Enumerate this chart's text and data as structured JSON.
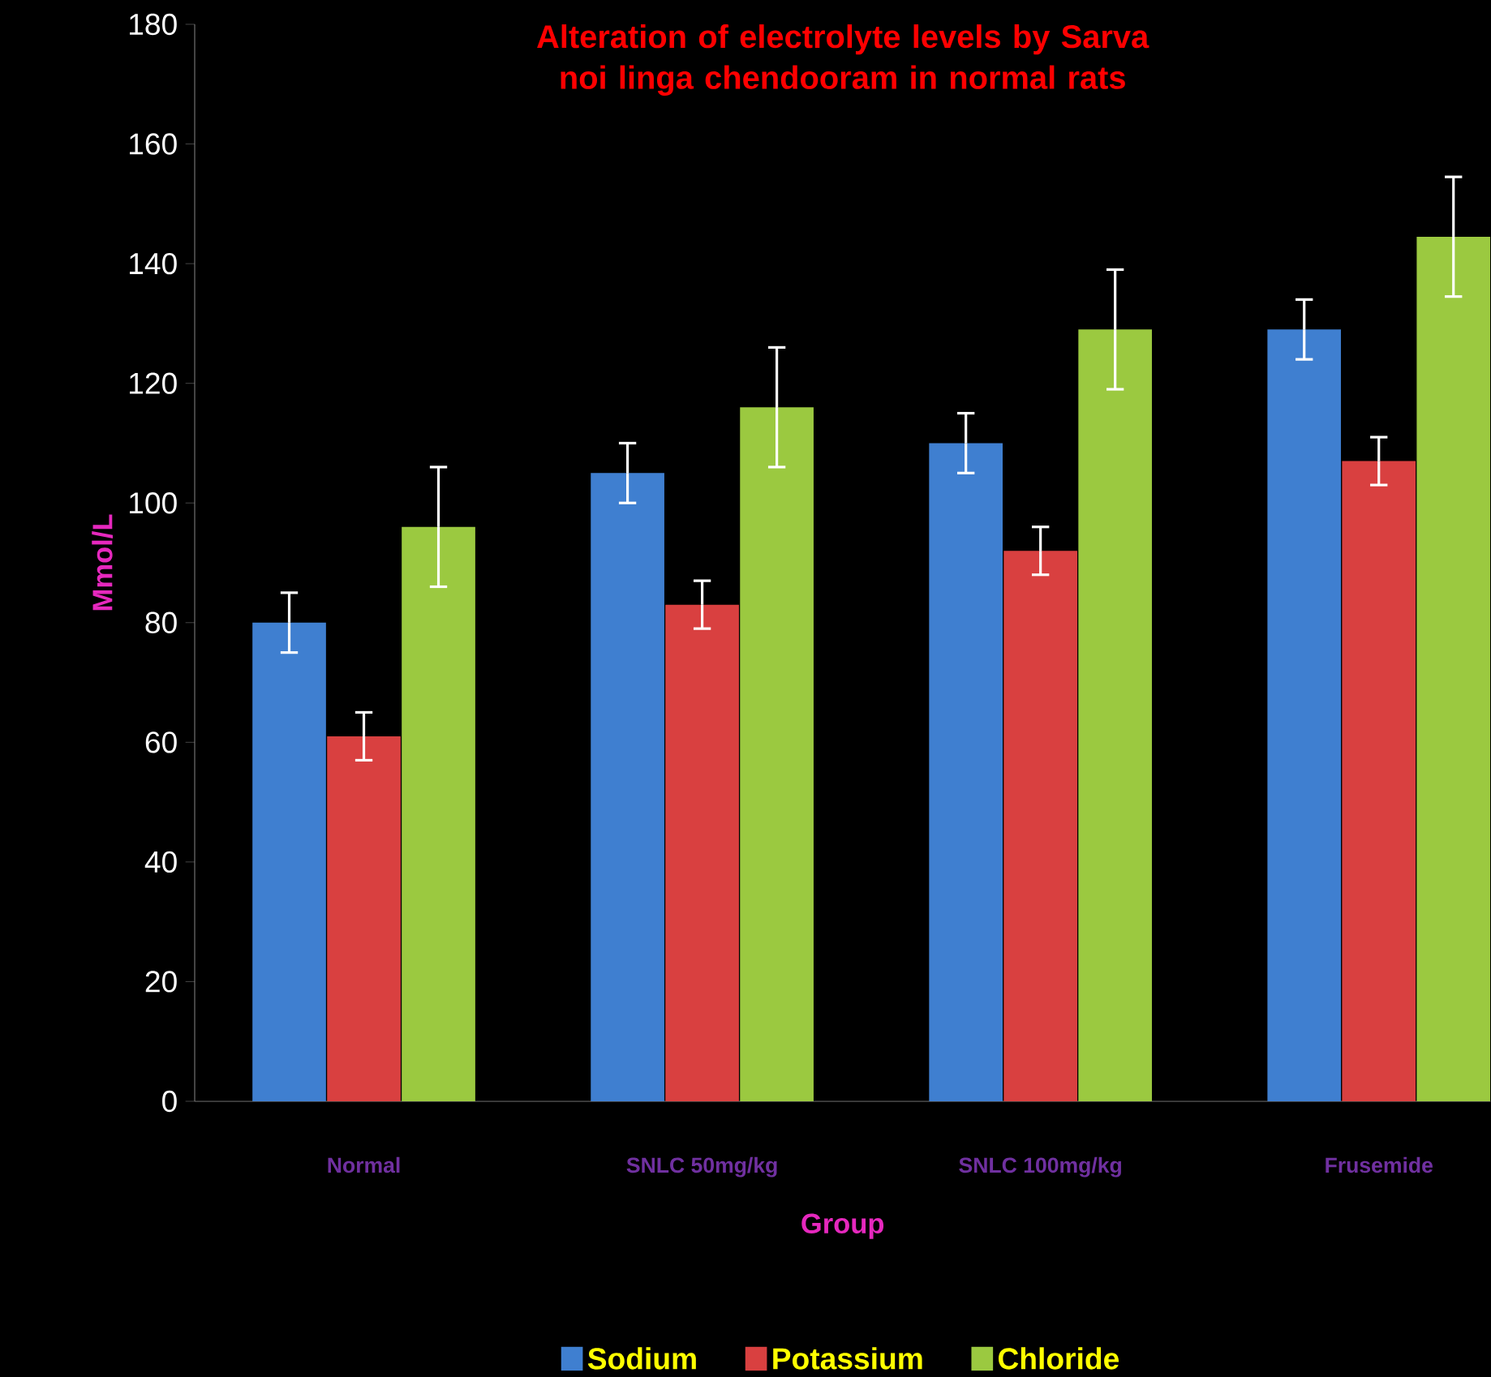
{
  "chart_data": {
    "type": "bar",
    "title": "Alteration of electrolyte levels by Sarva noi linga chendooram in normal rats",
    "xlabel": "Group",
    "ylabel": "Mmol/L",
    "categories": [
      "Normal",
      "SNLC 50mg/kg",
      "SNLC 100mg/kg",
      "Frusemide"
    ],
    "series": [
      {
        "name": "Sodium",
        "color": "#3f7fd0",
        "values": [
          80,
          105,
          110,
          129
        ],
        "errors": [
          5,
          5,
          5,
          5
        ]
      },
      {
        "name": "Potassium",
        "color": "#d94040",
        "values": [
          61,
          83,
          92,
          107
        ],
        "errors": [
          4,
          4,
          4,
          4
        ]
      },
      {
        "name": "Chloride",
        "color": "#9bc940",
        "values": [
          96,
          116,
          129,
          144.5
        ],
        "errors": [
          10,
          10,
          10,
          10
        ]
      }
    ],
    "ylim": [
      0,
      180
    ],
    "yticks": [
      0,
      20,
      40,
      60,
      80,
      100,
      120,
      140,
      160,
      180
    ],
    "grid": false,
    "legend": "bottom"
  }
}
